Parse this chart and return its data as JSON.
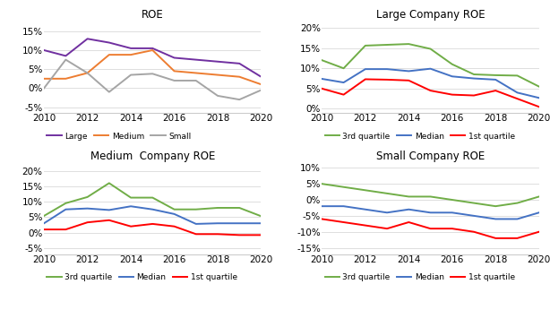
{
  "years": [
    2010,
    2011,
    2012,
    2013,
    2014,
    2015,
    2016,
    2017,
    2018,
    2019,
    2020
  ],
  "roe_large": [
    0.1,
    0.085,
    0.13,
    0.12,
    0.105,
    0.105,
    0.08,
    0.075,
    0.07,
    0.065,
    0.03
  ],
  "roe_medium": [
    0.025,
    0.025,
    0.04,
    0.088,
    0.088,
    0.1,
    0.045,
    0.04,
    0.035,
    0.03,
    0.01
  ],
  "roe_small": [
    0.0,
    0.075,
    0.04,
    -0.01,
    0.035,
    0.038,
    0.02,
    0.02,
    -0.02,
    -0.03,
    -0.005
  ],
  "large_q3": [
    0.12,
    0.1,
    0.156,
    0.158,
    0.16,
    0.148,
    0.11,
    0.085,
    0.083,
    0.082,
    0.055
  ],
  "large_med": [
    0.074,
    0.065,
    0.098,
    0.098,
    0.093,
    0.099,
    0.08,
    0.075,
    0.072,
    0.04,
    0.027
  ],
  "large_q1": [
    0.05,
    0.035,
    0.073,
    0.072,
    0.07,
    0.045,
    0.035,
    0.033,
    0.045,
    0.025,
    0.005
  ],
  "medium_q3": [
    0.054,
    0.095,
    0.115,
    0.16,
    0.113,
    0.113,
    0.075,
    0.075,
    0.08,
    0.08,
    0.053
  ],
  "medium_med": [
    0.03,
    0.075,
    0.078,
    0.073,
    0.085,
    0.075,
    0.06,
    0.028,
    0.03,
    0.03,
    0.03
  ],
  "medium_q1": [
    0.01,
    0.01,
    0.033,
    0.04,
    0.02,
    0.028,
    0.02,
    -0.005,
    -0.005,
    -0.008,
    -0.008
  ],
  "small_q3": [
    0.05,
    0.04,
    0.03,
    0.02,
    0.01,
    0.01,
    0.0,
    -0.01,
    -0.02,
    -0.01,
    0.01
  ],
  "small_med": [
    -0.02,
    -0.02,
    -0.03,
    -0.04,
    -0.03,
    -0.04,
    -0.04,
    -0.05,
    -0.06,
    -0.06,
    -0.04
  ],
  "small_q1": [
    -0.06,
    -0.07,
    -0.08,
    -0.09,
    -0.07,
    -0.09,
    -0.09,
    -0.1,
    -0.12,
    -0.12,
    -0.1
  ],
  "color_large": "#7030a0",
  "color_medium": "#ed7d31",
  "color_small": "#a5a5a5",
  "color_q3": "#70ad47",
  "color_med": "#4472c4",
  "color_q1": "#ff0000"
}
